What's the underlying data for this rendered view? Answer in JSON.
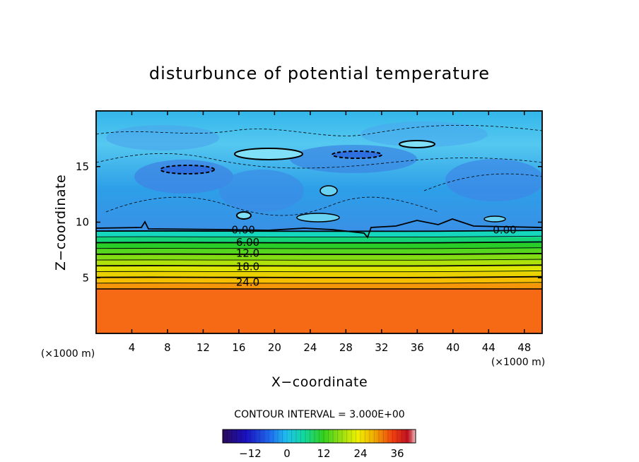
{
  "chart_data": {
    "type": "heatmap",
    "title": "disturbunce of potential temperature",
    "xlabel": "X−coordinate",
    "ylabel": "Z−coordinate",
    "x_unit": "(×1000 m)",
    "z_unit": "(×1000 m)",
    "xlim": [
      0,
      50
    ],
    "zlim": [
      0,
      20
    ],
    "x_ticks": [
      "4",
      "8",
      "12",
      "16",
      "20",
      "24",
      "28",
      "32",
      "36",
      "40",
      "44",
      "48"
    ],
    "z_ticks": [
      "5",
      "10",
      "15"
    ],
    "contour_interval_label": "CONTOUR INTERVAL = 3.000E+00",
    "contour_labels": [
      {
        "text": "0.00",
        "x": 16.5,
        "z": 9.3
      },
      {
        "text": "6.00",
        "x": 17.0,
        "z": 8.2
      },
      {
        "text": "12.0",
        "x": 17.0,
        "z": 7.2
      },
      {
        "text": "18.0",
        "x": 17.0,
        "z": 6.0
      },
      {
        "text": "24.0",
        "x": 17.0,
        "z": 4.6
      },
      {
        "text": "0.00",
        "x": 45.8,
        "z": 9.3
      }
    ],
    "colorbar": {
      "min": -21,
      "max": 42,
      "tick_labels": [
        "−12",
        "0",
        "12",
        "24",
        "36"
      ],
      "tick_values": [
        -12,
        0,
        12,
        24,
        36
      ]
    },
    "zones": [
      {
        "z_range": [
          0,
          4.0
        ],
        "value": 33
      },
      {
        "z_range": [
          4.0,
          5.0
        ],
        "value": 24
      },
      {
        "z_range": [
          5.0,
          6.0
        ],
        "value": 18
      },
      {
        "z_range": [
          6.0,
          7.0
        ],
        "value": 12
      },
      {
        "z_range": [
          7.0,
          8.0
        ],
        "value": 6
      },
      {
        "z_range": [
          8.0,
          9.2
        ],
        "value": 1
      },
      {
        "z_range": [
          9.2,
          20.0
        ],
        "value": -5
      }
    ]
  }
}
